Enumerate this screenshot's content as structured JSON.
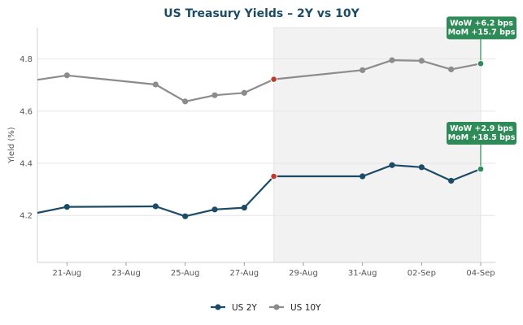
{
  "chart_data": {
    "type": "line",
    "title": "US Treasury Yields – 2Y vs 10Y",
    "ylabel": "Yield (%)",
    "xlabel": "",
    "x_ticks": [
      "21-Aug",
      "23-Aug",
      "25-Aug",
      "27-Aug",
      "29-Aug",
      "31-Aug",
      "02-Sep",
      "04-Sep"
    ],
    "y_ticks": [
      "4.2",
      "4.4",
      "4.6",
      "4.8"
    ],
    "xlim": [
      "2025-08-20",
      "2025-09-04"
    ],
    "ylim": [
      4.02,
      4.92
    ],
    "grid": "horizontal",
    "legend_position": "bottom",
    "shaded_region": {
      "from": "2025-08-28",
      "to": "2025-09-04"
    },
    "series": [
      {
        "name": "US 2Y",
        "color": "#1b4b66",
        "x": [
          "2025-08-20",
          "2025-08-21",
          "2025-08-24",
          "2025-08-25",
          "2025-08-26",
          "2025-08-27",
          "2025-08-28",
          "2025-08-31",
          "2025-09-01",
          "2025-09-02",
          "2025-09-03",
          "2025-09-04"
        ],
        "values": [
          4.21,
          4.233,
          4.235,
          4.197,
          4.223,
          4.23,
          4.35,
          4.35,
          4.393,
          4.385,
          4.333,
          4.378
        ]
      },
      {
        "name": "US 10Y",
        "color": "#8c8c8c",
        "x": [
          "2025-08-20",
          "2025-08-21",
          "2025-08-24",
          "2025-08-25",
          "2025-08-26",
          "2025-08-27",
          "2025-08-28",
          "2025-08-31",
          "2025-09-01",
          "2025-09-02",
          "2025-09-03",
          "2025-09-04"
        ],
        "values": [
          4.72,
          4.737,
          4.702,
          4.637,
          4.661,
          4.67,
          4.722,
          4.757,
          4.795,
          4.793,
          4.76,
          4.782
        ]
      }
    ],
    "highlight_points": [
      {
        "series": "US 2Y",
        "x": "2025-08-28",
        "color": "#c0392b"
      },
      {
        "series": "US 10Y",
        "x": "2025-08-28",
        "color": "#c0392b"
      },
      {
        "series": "US 2Y",
        "x": "2025-09-04",
        "color": "#2e8b57"
      },
      {
        "series": "US 10Y",
        "x": "2025-09-04",
        "color": "#2e8b57"
      }
    ],
    "annotations": [
      {
        "series": "US 10Y",
        "x": "2025-09-04",
        "lines": [
          "WoW +6.2 bps",
          "MoM +15.7 bps"
        ],
        "color": "#2e8b57"
      },
      {
        "series": "US 2Y",
        "x": "2025-09-04",
        "lines": [
          "WoW +2.9 bps",
          "MoM +18.5 bps"
        ],
        "color": "#2e8b57"
      }
    ]
  }
}
